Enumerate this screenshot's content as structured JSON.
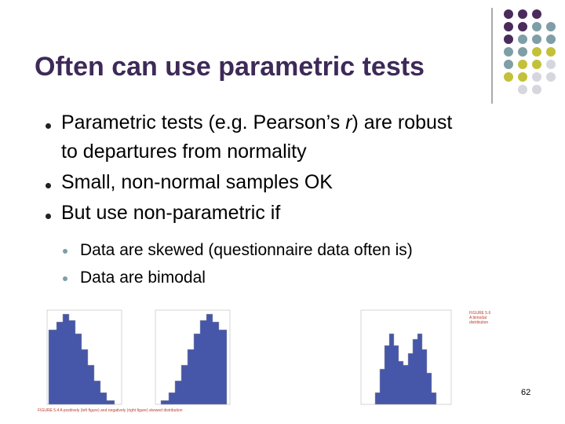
{
  "slide": {
    "title": "Often can use parametric tests",
    "bullets": [
      {
        "before": "Parametric tests (e.g. Pearson’s ",
        "italic": "r",
        "after": ") are robust",
        "line2": "to departures from normality"
      },
      {
        "text": "Small, non-normal samples OK"
      },
      {
        "text": "But use non-parametric if"
      }
    ],
    "sub_bullets": [
      "Data are skewed (questionnaire data often is)",
      "Data are bimodal"
    ],
    "figure_captions": [
      "FIGURE 5.4 A positively (left figure) and negatively (right figure) skewed distribution",
      "FIGURE 5.6 A bimodal distribution"
    ],
    "page_number": "62"
  }
}
